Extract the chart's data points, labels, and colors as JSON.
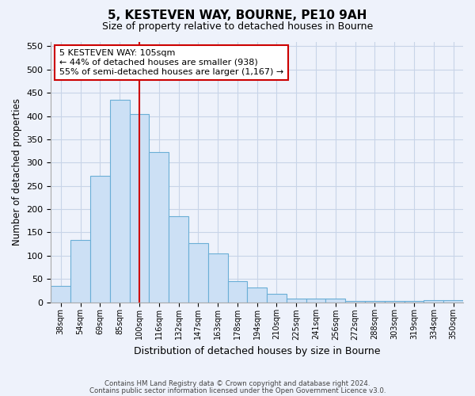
{
  "title": "5, KESTEVEN WAY, BOURNE, PE10 9AH",
  "subtitle": "Size of property relative to detached houses in Bourne",
  "xlabel": "Distribution of detached houses by size in Bourne",
  "ylabel": "Number of detached properties",
  "bar_labels": [
    "38sqm",
    "54sqm",
    "69sqm",
    "85sqm",
    "100sqm",
    "116sqm",
    "132sqm",
    "147sqm",
    "163sqm",
    "178sqm",
    "194sqm",
    "210sqm",
    "225sqm",
    "241sqm",
    "256sqm",
    "272sqm",
    "288sqm",
    "303sqm",
    "319sqm",
    "334sqm",
    "350sqm"
  ],
  "bar_values": [
    35,
    133,
    272,
    435,
    405,
    322,
    184,
    126,
    104,
    46,
    31,
    18,
    7,
    8,
    7,
    2,
    2,
    2,
    2,
    5,
    4
  ],
  "bar_color": "#cce0f5",
  "bar_edge_color": "#6aaed6",
  "vline_x": 4.5,
  "vline_color": "#cc0000",
  "annotation_title": "5 KESTEVEN WAY: 105sqm",
  "annotation_line1": "← 44% of detached houses are smaller (938)",
  "annotation_line2": "55% of semi-detached houses are larger (1,167) →",
  "annotation_box_color": "#ffffff",
  "annotation_box_edge": "#cc0000",
  "ylim": [
    0,
    560
  ],
  "yticks": [
    0,
    50,
    100,
    150,
    200,
    250,
    300,
    350,
    400,
    450,
    500,
    550
  ],
  "footer1": "Contains HM Land Registry data © Crown copyright and database right 2024.",
  "footer2": "Contains public sector information licensed under the Open Government Licence v3.0.",
  "bg_color": "#eef2fb",
  "plot_bg_color": "#eef2fb",
  "grid_color": "#c8d4e8"
}
